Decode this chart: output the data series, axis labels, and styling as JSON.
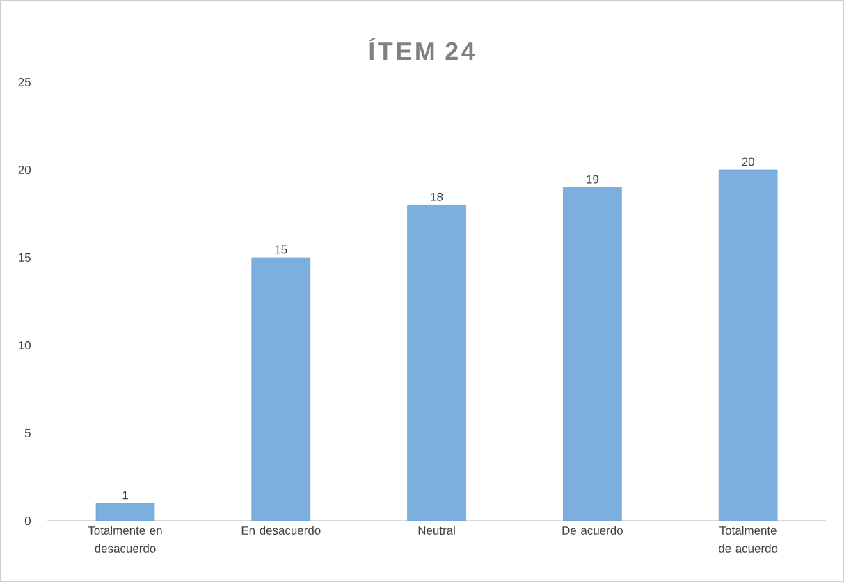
{
  "chart_data": {
    "type": "bar",
    "title": "ÍTEM 24",
    "categories": [
      "Totalmente en desacuerdo",
      "En desacuerdo",
      "Neutral",
      "De acuerdo",
      "Totalmente de acuerdo"
    ],
    "values": [
      1,
      15,
      18,
      19,
      20
    ],
    "color": "#5b9bd5",
    "ylim": [
      0,
      25
    ],
    "yticks": [
      0,
      5,
      10,
      15,
      20,
      25
    ],
    "data_labels": true
  }
}
